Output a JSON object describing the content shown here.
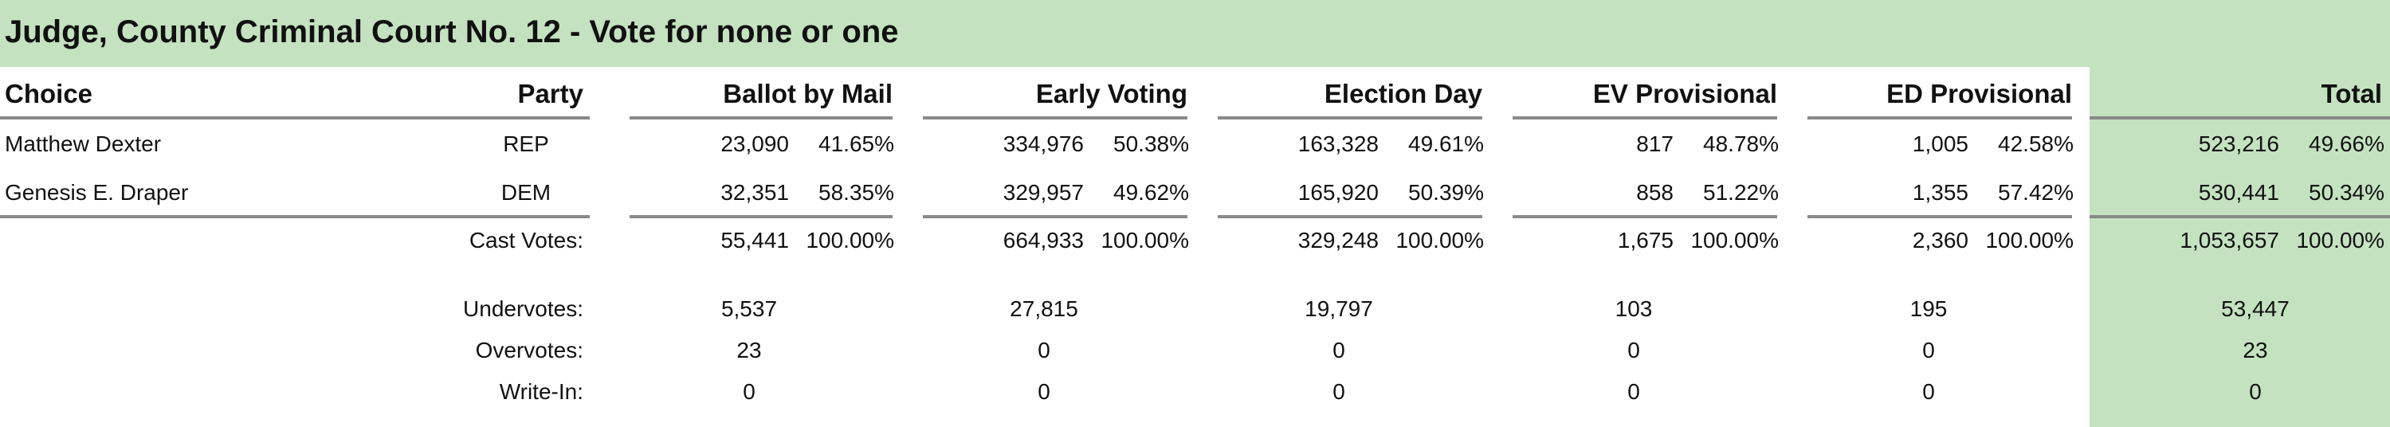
{
  "contest": {
    "title": "Judge, County Criminal Court No. 12 - Vote for none or one"
  },
  "columns": {
    "choice": "Choice",
    "party": "Party",
    "ballot_by_mail": "Ballot by Mail",
    "early_voting": "Early Voting",
    "election_day": "Election Day",
    "ev_provisional": "EV Provisional",
    "ed_provisional": "ED Provisional",
    "total": "Total"
  },
  "candidates": [
    {
      "name": "Matthew Dexter",
      "party": "REP",
      "bbm": "23,090",
      "bbm_pct": "41.65%",
      "ev": "334,976",
      "ev_pct": "50.38%",
      "ed": "163,328",
      "ed_pct": "49.61%",
      "evp": "817",
      "evp_pct": "48.78%",
      "edp": "1,005",
      "edp_pct": "42.58%",
      "total": "523,216",
      "total_pct": "49.66%"
    },
    {
      "name": "Genesis E. Draper",
      "party": "DEM",
      "bbm": "32,351",
      "bbm_pct": "58.35%",
      "ev": "329,957",
      "ev_pct": "49.62%",
      "ed": "165,920",
      "ed_pct": "50.39%",
      "evp": "858",
      "evp_pct": "51.22%",
      "edp": "1,355",
      "edp_pct": "57.42%",
      "total": "530,441",
      "total_pct": "50.34%"
    }
  ],
  "cast_votes": {
    "label": "Cast Votes:",
    "bbm": "55,441",
    "bbm_pct": "100.00%",
    "ev": "664,933",
    "ev_pct": "100.00%",
    "ed": "329,248",
    "ed_pct": "100.00%",
    "evp": "1,675",
    "evp_pct": "100.00%",
    "edp": "2,360",
    "edp_pct": "100.00%",
    "total": "1,053,657",
    "total_pct": "100.00%"
  },
  "undervotes": {
    "label": "Undervotes:",
    "bbm": "5,537",
    "ev": "27,815",
    "ed": "19,797",
    "evp": "103",
    "edp": "195",
    "total": "53,447"
  },
  "overvotes": {
    "label": "Overvotes:",
    "bbm": "23",
    "ev": "0",
    "ed": "0",
    "evp": "0",
    "edp": "0",
    "total": "23"
  },
  "write_in": {
    "label": "Write-In:",
    "bbm": "0",
    "ev": "0",
    "ed": "0",
    "evp": "0",
    "edp": "0",
    "total": "0"
  },
  "colors": {
    "header_band": "#c4e2c0",
    "total_band": "#c4e2c0",
    "rule": "#8a8a8a"
  }
}
